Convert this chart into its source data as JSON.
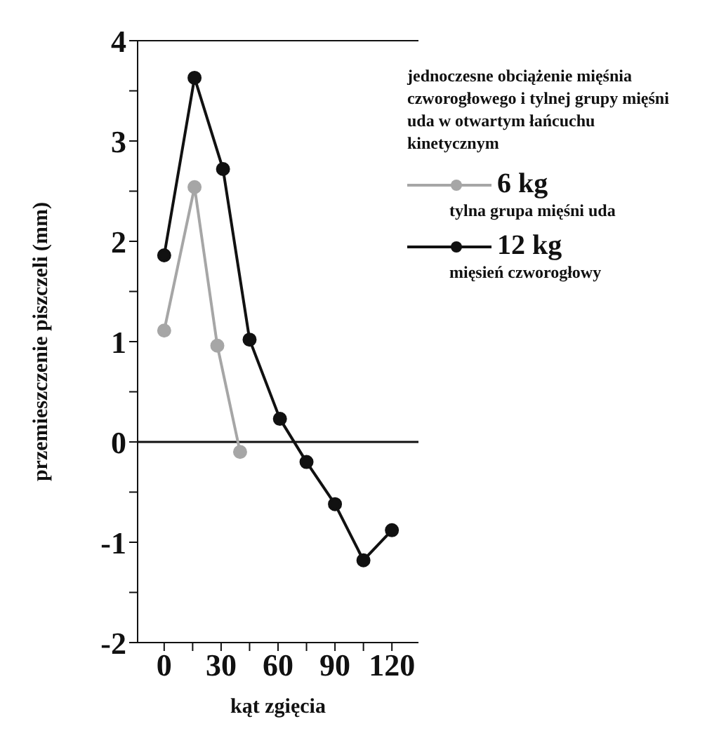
{
  "chart_data": {
    "type": "line",
    "xlabel": "kąt zgięcia",
    "ylabel": "przemieszczenie piszczeli (mm)",
    "legend_title": "jednoczesne obciążenie mięśnia czworogłowego i tylnej grupy mięśni uda w otwartym łańcuchu kinetycznym",
    "annotations": [
      "tylna grupa mięśni uda",
      "mięsień czworogłowy"
    ],
    "series": [
      {
        "name": "6 kg",
        "color": "#a6a6a6",
        "x": [
          0,
          16,
          28,
          40
        ],
        "values": [
          1.11,
          2.54,
          0.96,
          -0.1
        ]
      },
      {
        "name": "12 kg",
        "color": "#111111",
        "x": [
          0,
          16,
          31,
          45,
          61,
          75,
          90,
          105,
          120
        ],
        "values": [
          1.86,
          3.63,
          2.72,
          1.02,
          0.23,
          -0.2,
          -0.62,
          -1.18,
          -0.88
        ]
      }
    ],
    "xlim": [
      -14,
      134
    ],
    "xticks": [
      0,
      {
        "value": 15,
        "label": null
      },
      30,
      {
        "value": 45,
        "label": null
      },
      60,
      {
        "value": 75,
        "label": null
      },
      90,
      {
        "value": 105,
        "label": null
      },
      120
    ],
    "ylim": [
      -2,
      4
    ],
    "yticks": [
      -2,
      {
        "value": -1.5,
        "label": null
      },
      -1,
      {
        "value": -0.5,
        "label": null
      },
      0,
      {
        "value": 0.5,
        "label": null
      },
      1,
      {
        "value": 1.5,
        "label": null
      },
      2,
      {
        "value": 2.5,
        "label": null
      },
      3,
      {
        "value": 3.5,
        "label": null
      },
      4
    ],
    "ref_lines": [
      {
        "axis": "y",
        "value": 0,
        "label": null,
        "color": "#111111"
      }
    ],
    "marker": "circle",
    "line_style": "solid",
    "grid": false,
    "legend": "top right"
  }
}
